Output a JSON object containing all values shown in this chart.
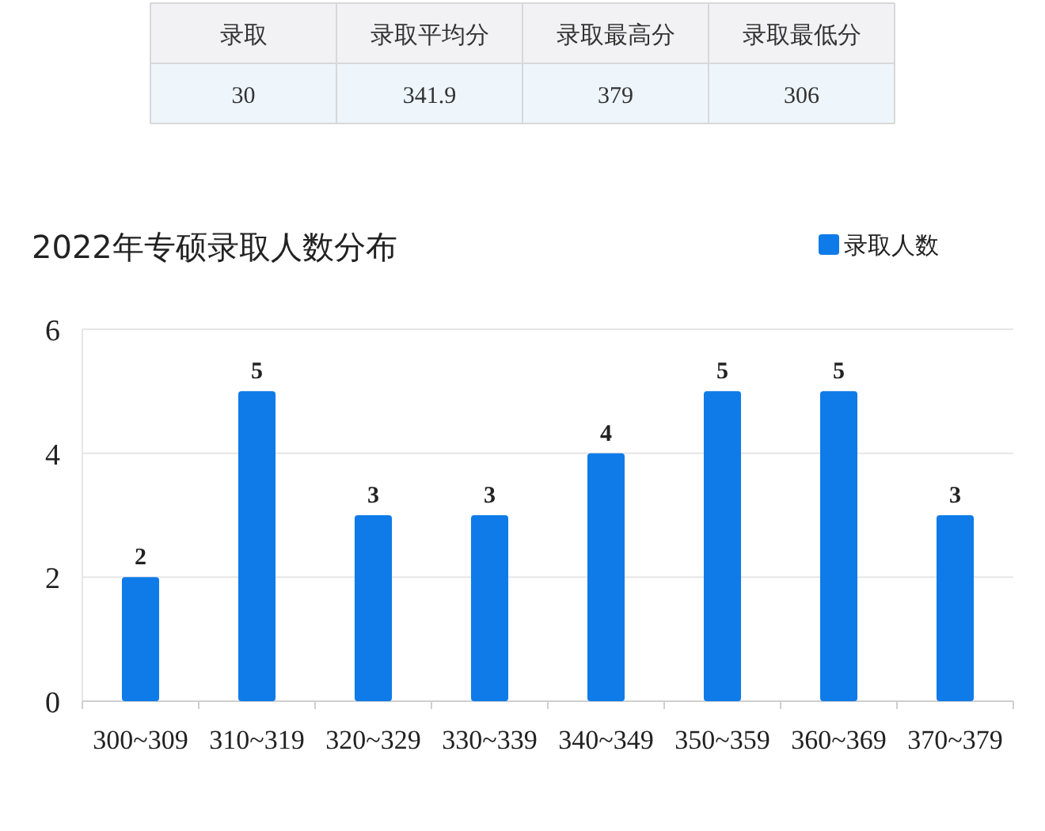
{
  "chart_data": [
    {
      "type": "other",
      "categories": [
        "录取",
        "录取平均分",
        "录取最高分",
        "录取最低分"
      ],
      "values": [
        30,
        341.9,
        379,
        306
      ],
      "data_labels": true
    },
    {
      "type": "bar",
      "title": "2022年专硕录取人数分布",
      "categories": [
        "300~309",
        "310~319",
        "320~329",
        "330~339",
        "340~349",
        "350~359",
        "360~369",
        "370~379"
      ],
      "series": [
        {
          "name": "录取人数",
          "color": "#0f7be8",
          "values": [
            2,
            5,
            3,
            3,
            4,
            5,
            5,
            3
          ]
        }
      ],
      "ylim": [
        0,
        6
      ],
      "yticks": [
        0,
        2,
        4,
        6
      ],
      "grid": "y",
      "legend": "top right",
      "data_labels": true
    }
  ]
}
